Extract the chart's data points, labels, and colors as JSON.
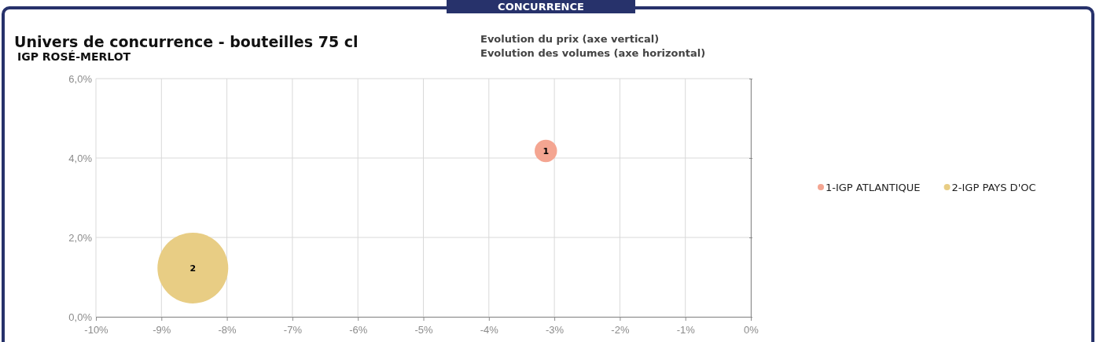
{
  "chart_data": {
    "type": "bubble",
    "title": "Univers de concurrence - bouteilles 75 cl",
    "subtitle": "IGP ROSÉ-MERLOT",
    "annotations": [
      "CONCURRENCE",
      "Evolution du prix (axe vertical)",
      "Evolution des volumes (axe horizontal)",
      {
        "text": "1",
        "x": -3.13,
        "y": 4.18
      },
      {
        "text": "2",
        "x": -8.52,
        "y": 1.23
      }
    ],
    "series": [
      {
        "name": "1-IGP ATLANTIQUE",
        "color": "#f4a591",
        "x": [
          -3.13
        ],
        "values": [
          4.18
        ],
        "sizes": [
          0.1
        ]
      },
      {
        "name": "2-IGP PAYS D'OC",
        "color": "#e8cd84",
        "x": [
          -8.52
        ],
        "values": [
          1.23
        ],
        "sizes": [
          1
        ]
      }
    ],
    "xlim": [
      -10,
      0
    ],
    "xticks": [
      {
        "value": -10,
        "label": "-10%"
      },
      {
        "value": -9,
        "label": "-9%"
      },
      {
        "value": -8,
        "label": "-8%"
      },
      {
        "value": -7,
        "label": "-7%"
      },
      {
        "value": -6,
        "label": "-6%"
      },
      {
        "value": -5,
        "label": "-5%"
      },
      {
        "value": -4,
        "label": "-4%"
      },
      {
        "value": -3,
        "label": "-3%"
      },
      {
        "value": -2,
        "label": "-2%"
      },
      {
        "value": -1,
        "label": "-1%"
      },
      {
        "value": 0,
        "label": "0%"
      }
    ],
    "ylim": [
      0,
      6
    ],
    "yticks": [
      {
        "value": 0,
        "label": "0,0%"
      },
      {
        "value": 2,
        "label": "2,0%"
      },
      {
        "value": 4,
        "label": "4,0%"
      },
      {
        "value": 6,
        "label": "6,0%"
      }
    ],
    "grid": true,
    "legend": "right"
  }
}
